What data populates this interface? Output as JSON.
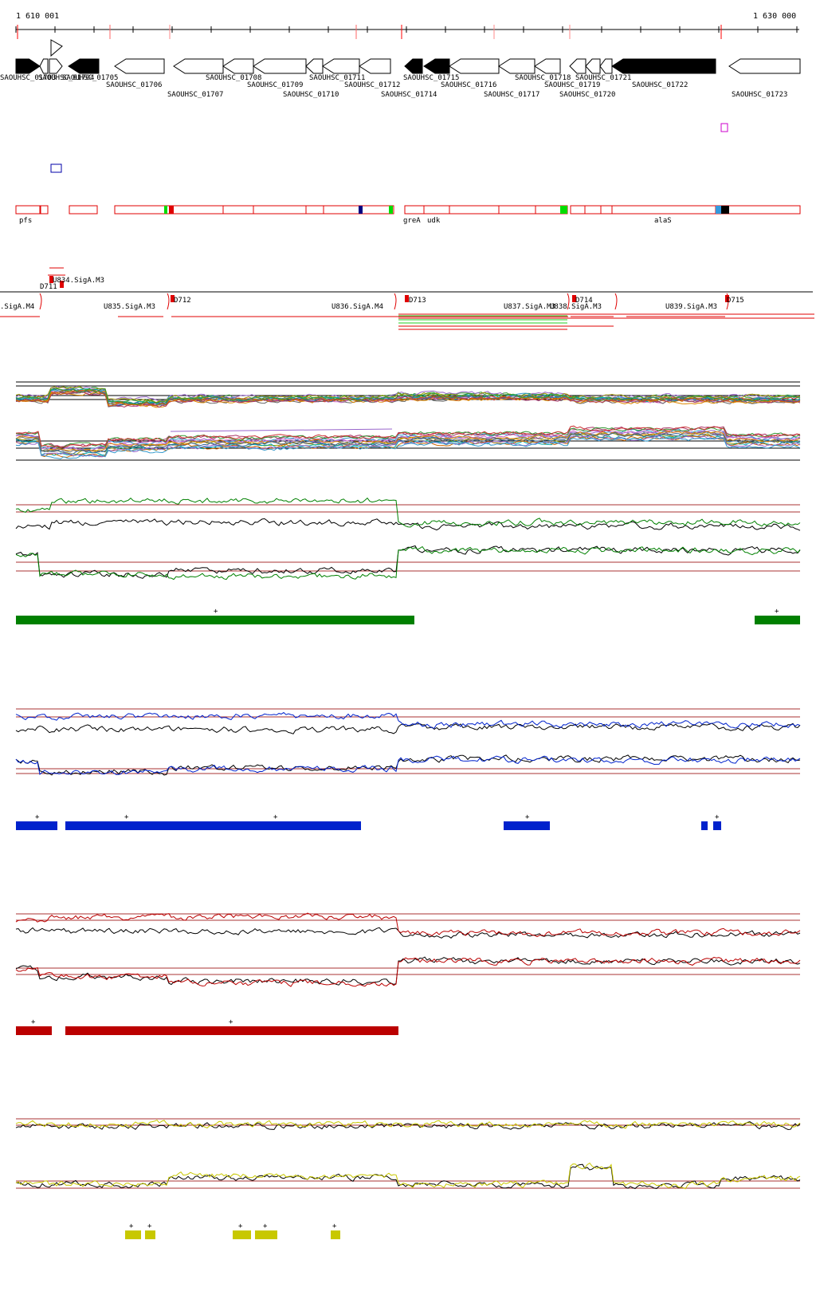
{
  "ruler": {
    "start_label": "1 610 001",
    "end_label": "1 630 000"
  },
  "genes": {
    "colors": {
      "plus": "#000000",
      "minus": "#ffffff",
      "stroke": "#000000"
    },
    "items": [
      {
        "name": "SAOUHSC_01703",
        "strand": "fwd",
        "filled": true
      },
      {
        "name": "SAOUHSC_01704",
        "strand": "rev",
        "filled": false
      },
      {
        "name": "SAOUHSC_01705a",
        "strand": "fwd",
        "filled": false
      },
      {
        "name": "SAOUHSC_01705",
        "strand": "rev",
        "filled": true
      },
      {
        "name": "SAOUHSC_01706",
        "strand": "rev",
        "filled": false
      },
      {
        "name": "SAOUHSC_01707",
        "strand": "rev",
        "filled": false
      },
      {
        "name": "SAOUHSC_01708",
        "strand": "rev",
        "filled": false
      },
      {
        "name": "SAOUHSC_01709",
        "strand": "rev",
        "filled": false
      },
      {
        "name": "SAOUHSC_01710",
        "strand": "rev",
        "filled": false
      },
      {
        "name": "SAOUHSC_01711",
        "strand": "rev",
        "filled": false
      },
      {
        "name": "SAOUHSC_01712",
        "strand": "rev",
        "filled": false
      },
      {
        "name": "SAOUHSC_01714",
        "strand": "rev",
        "filled": true
      },
      {
        "name": "SAOUHSC_01715",
        "strand": "rev",
        "filled": true
      },
      {
        "name": "SAOUHSC_01716",
        "strand": "rev",
        "filled": false
      },
      {
        "name": "SAOUHSC_01717",
        "strand": "rev",
        "filled": false
      },
      {
        "name": "SAOUHSC_01718",
        "strand": "rev",
        "filled": false
      },
      {
        "name": "SAOUHSC_01719",
        "strand": "rev",
        "filled": false
      },
      {
        "name": "SAOUHSC_01720",
        "strand": "rev",
        "filled": false
      },
      {
        "name": "SAOUHSC_01721",
        "strand": "rev",
        "filled": false
      },
      {
        "name": "SAOUHSC_01722",
        "strand": "rev",
        "filled": true
      },
      {
        "name": "SAOUHSC_01723",
        "strand": "rev",
        "filled": false
      }
    ],
    "labels": {
      "l01703": "SAOUHSC_01703",
      "l01704": "SAOUHSC_01704",
      "l01705": "SAOUHSC_01705",
      "l01706": "SAOUHSC_01706",
      "l01707": "SAOUHSC_01707",
      "l01708": "SAOUHSC_01708",
      "l01709": "SAOUHSC_01709",
      "l01710": "SAOUHSC_01710",
      "l01711": "SAOUHSC_01711",
      "l01712": "SAOUHSC_01712",
      "l01714": "SAOUHSC_01714",
      "l01715": "SAOUHSC_01715",
      "l01716": "SAOUHSC_01716",
      "l01717": "SAOUHSC_01717",
      "l01718": "SAOUHSC_01718",
      "l01719": "SAOUHSC_01719",
      "l01720": "SAOUHSC_01720",
      "l01721": "SAOUHSC_01721",
      "l01722": "SAOUHSC_01722",
      "l01723": "SAOUHSC_01723"
    }
  },
  "annotations": {
    "pfs": "pfs",
    "greA": "greA",
    "udk": "udk",
    "alaS": "alaS",
    "colors": {
      "box": "#e00000",
      "green": "#00dd00",
      "blue": "#000080",
      "cyan": "#3399dd",
      "black": "#000000",
      "magenta": "#cc00cc",
      "navy_outline": "#0000aa"
    }
  },
  "promoters": {
    "U834": "U834.SigA.M3",
    "D711": "D711",
    "U_left": ".SigA.M4",
    "U835": "U835.SigA.M3",
    "D712": "D712",
    "U836": "U836.SigA.M4",
    "D713": "D713",
    "U837": "U837.SigA.M3",
    "U838": "U838.SigA.M3",
    "D714": "D714",
    "U839": "U839.SigA.M3",
    "D715": "D715"
  },
  "tracks": {
    "colors": {
      "green": "#008000",
      "blue": "#0022cc",
      "red": "#bb0000",
      "yellow": "#c8c800",
      "ref": "#000000",
      "baseline": "#aa3333"
    },
    "plus_sign": "+"
  }
}
